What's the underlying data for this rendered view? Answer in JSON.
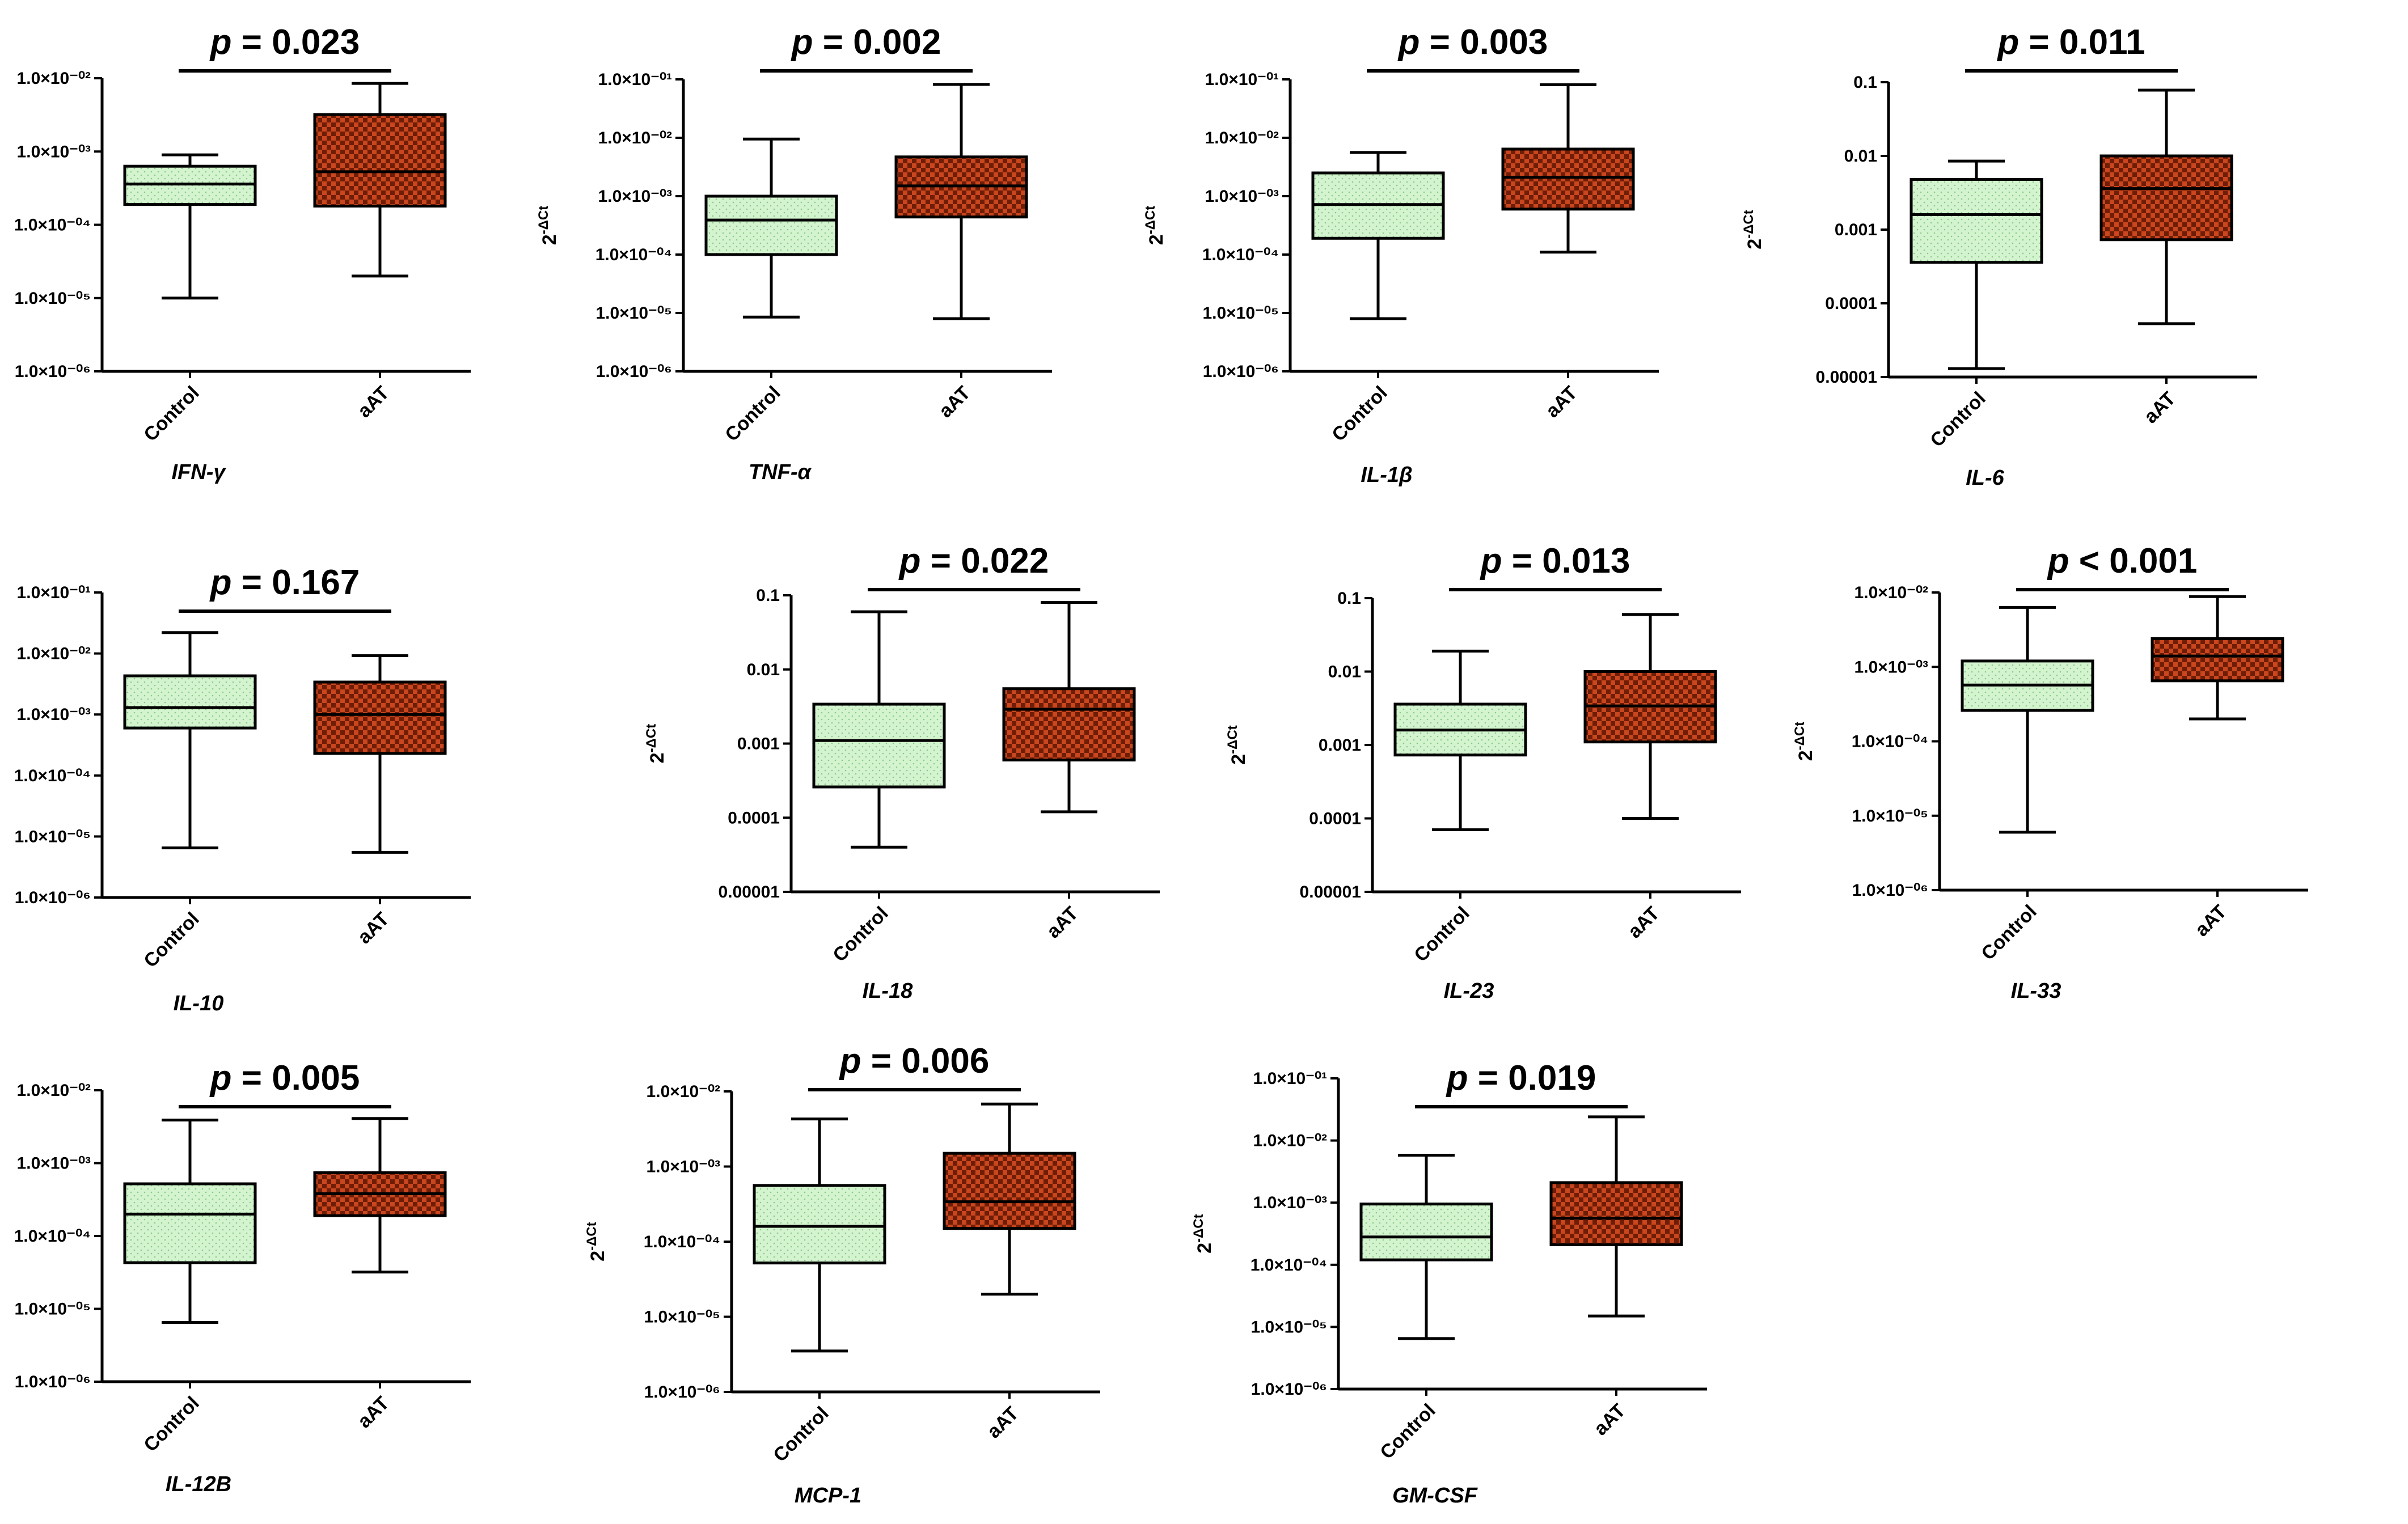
{
  "figure": {
    "ylabel": "2",
    "ylabel_sup": "-ΔCt",
    "colors": {
      "control": "#d4f4cf",
      "aAT": "#c9461e",
      "aAT_dark": "#6e1d06"
    }
  },
  "chart_data": [
    {
      "type": "boxplot",
      "title": "IFN-γ",
      "p_label": "p",
      "p_value": "= 0.023",
      "categories": [
        "Control",
        "aAT"
      ],
      "ylim": [
        1e-06,
        0.01
      ],
      "scale": "log",
      "ticks": [
        "1.0×10⁻⁰²",
        "1.0×10⁻⁰³",
        "1.0×10⁻⁰⁴",
        "1.0×10⁻⁰⁵",
        "1.0×10⁻⁰⁶"
      ],
      "series": [
        {
          "name": "Control",
          "min": 1e-05,
          "q1": 0.00019,
          "median": 0.00036,
          "q3": 0.00063,
          "max": 0.0009
        },
        {
          "name": "aAT",
          "min": 2e-05,
          "q1": 0.00018,
          "median": 0.00053,
          "q3": 0.0032,
          "max": 0.0085
        }
      ]
    },
    {
      "type": "boxplot",
      "title": "TNF-α",
      "p_label": "p",
      "p_value": "= 0.002",
      "categories": [
        "Control",
        "aAT"
      ],
      "ylim": [
        1e-06,
        0.1
      ],
      "scale": "log",
      "ticks": [
        "1.0×10⁻⁰¹",
        "1.0×10⁻⁰²",
        "1.0×10⁻⁰³",
        "1.0×10⁻⁰⁴",
        "1.0×10⁻⁰⁵",
        "1.0×10⁻⁰⁶"
      ],
      "series": [
        {
          "name": "Control",
          "min": 8.5e-06,
          "q1": 0.0001,
          "median": 0.00039,
          "q3": 0.001,
          "max": 0.0095
        },
        {
          "name": "aAT",
          "min": 8e-06,
          "q1": 0.00044,
          "median": 0.0015,
          "q3": 0.0047,
          "max": 0.082
        }
      ]
    },
    {
      "type": "boxplot",
      "title": "IL-1β",
      "p_label": "p",
      "p_value": "= 0.003",
      "categories": [
        "Control",
        "aAT"
      ],
      "ylim": [
        1e-06,
        0.1
      ],
      "scale": "log",
      "ticks": [
        "1.0×10⁻⁰¹",
        "1.0×10⁻⁰²",
        "1.0×10⁻⁰³",
        "1.0×10⁻⁰⁴",
        "1.0×10⁻⁰⁵",
        "1.0×10⁻⁰⁶"
      ],
      "series": [
        {
          "name": "Control",
          "min": 8e-06,
          "q1": 0.00019,
          "median": 0.00072,
          "q3": 0.0025,
          "max": 0.0056
        },
        {
          "name": "aAT",
          "min": 0.00011,
          "q1": 0.0006,
          "median": 0.0021,
          "q3": 0.0064,
          "max": 0.081
        }
      ]
    },
    {
      "type": "boxplot",
      "title": "IL-6",
      "p_label": "p",
      "p_value": "= 0.011",
      "categories": [
        "Control",
        "aAT"
      ],
      "ylim": [
        1e-05,
        0.1
      ],
      "scale": "log",
      "ticks": [
        "0.1",
        "0.01",
        "0.001",
        "0.0001",
        "0.00001"
      ],
      "series": [
        {
          "name": "Control",
          "min": 1.3e-05,
          "q1": 0.00036,
          "median": 0.0016,
          "q3": 0.0048,
          "max": 0.0085
        },
        {
          "name": "aAT",
          "min": 5.3e-05,
          "q1": 0.00073,
          "median": 0.0036,
          "q3": 0.01,
          "max": 0.078
        }
      ]
    },
    {
      "type": "boxplot",
      "title": "IL-10",
      "p_label": "p",
      "p_value": "= 0.167",
      "categories": [
        "Control",
        "aAT"
      ],
      "ylim": [
        1e-06,
        0.1
      ],
      "scale": "log",
      "ticks": [
        "1.0×10⁻⁰¹",
        "1.0×10⁻⁰²",
        "1.0×10⁻⁰³",
        "1.0×10⁻⁰⁴",
        "1.0×10⁻⁰⁵",
        "1.0×10⁻⁰⁶"
      ],
      "series": [
        {
          "name": "Control",
          "min": 6.5e-06,
          "q1": 0.0006,
          "median": 0.0013,
          "q3": 0.0043,
          "max": 0.022
        },
        {
          "name": "aAT",
          "min": 5.5e-06,
          "q1": 0.00023,
          "median": 0.001,
          "q3": 0.0034,
          "max": 0.0092
        }
      ]
    },
    {
      "type": "boxplot",
      "title": "IL-18",
      "p_label": "p",
      "p_value": "= 0.022",
      "categories": [
        "Control",
        "aAT"
      ],
      "ylim": [
        1e-05,
        0.1
      ],
      "scale": "log",
      "ticks": [
        "0.1",
        "0.01",
        "0.001",
        "0.0001",
        "0.00001"
      ],
      "series": [
        {
          "name": "Control",
          "min": 4e-05,
          "q1": 0.00026,
          "median": 0.0011,
          "q3": 0.0034,
          "max": 0.06
        },
        {
          "name": "aAT",
          "min": 0.00012,
          "q1": 0.0006,
          "median": 0.0029,
          "q3": 0.0055,
          "max": 0.08
        }
      ]
    },
    {
      "type": "boxplot",
      "title": "IL-23",
      "p_label": "p",
      "p_value": "= 0.013",
      "categories": [
        "Control",
        "aAT"
      ],
      "ylim": [
        1e-05,
        0.1
      ],
      "scale": "log",
      "ticks": [
        "0.1",
        "0.01",
        "0.001",
        "0.0001",
        "0.00001"
      ],
      "series": [
        {
          "name": "Control",
          "min": 7e-05,
          "q1": 0.00073,
          "median": 0.0016,
          "q3": 0.0036,
          "max": 0.019
        },
        {
          "name": "aAT",
          "min": 0.0001,
          "q1": 0.0011,
          "median": 0.0034,
          "q3": 0.01,
          "max": 0.06
        }
      ]
    },
    {
      "type": "boxplot",
      "title": "IL-33",
      "p_label": "p",
      "p_value": "< 0.001",
      "categories": [
        "Control",
        "aAT"
      ],
      "ylim": [
        1e-06,
        0.01
      ],
      "scale": "log",
      "ticks": [
        "1.0×10⁻⁰²",
        "1.0×10⁻⁰³",
        "1.0×10⁻⁰⁴",
        "1.0×10⁻⁰⁵",
        "1.0×10⁻⁰⁶"
      ],
      "series": [
        {
          "name": "Control",
          "min": 6e-06,
          "q1": 0.00026,
          "median": 0.00057,
          "q3": 0.0012,
          "max": 0.0063
        },
        {
          "name": "aAT",
          "min": 0.0002,
          "q1": 0.00065,
          "median": 0.0014,
          "q3": 0.0024,
          "max": 0.0088
        }
      ]
    },
    {
      "type": "boxplot",
      "title": "IL-12B",
      "p_label": "p",
      "p_value": "= 0.005",
      "categories": [
        "Control",
        "aAT"
      ],
      "ylim": [
        1e-06,
        0.01
      ],
      "scale": "log",
      "ticks": [
        "1.0×10⁻⁰²",
        "1.0×10⁻⁰³",
        "1.0×10⁻⁰⁴",
        "1.0×10⁻⁰⁵",
        "1.0×10⁻⁰⁶"
      ],
      "series": [
        {
          "name": "Control",
          "min": 6.5e-06,
          "q1": 4.3e-05,
          "median": 0.0002,
          "q3": 0.00052,
          "max": 0.0039
        },
        {
          "name": "aAT",
          "min": 3.2e-05,
          "q1": 0.00019,
          "median": 0.00038,
          "q3": 0.00074,
          "max": 0.0041
        }
      ]
    },
    {
      "type": "boxplot",
      "title": "MCP-1",
      "p_label": "p",
      "p_value": "= 0.006",
      "categories": [
        "Control",
        "aAT"
      ],
      "ylim": [
        1e-06,
        0.01
      ],
      "scale": "log",
      "ticks": [
        "1.0×10⁻⁰²",
        "1.0×10⁻⁰³",
        "1.0×10⁻⁰⁴",
        "1.0×10⁻⁰⁵",
        "1.0×10⁻⁰⁶"
      ],
      "series": [
        {
          "name": "Control",
          "min": 3.5e-06,
          "q1": 5.2e-05,
          "median": 0.00016,
          "q3": 0.00056,
          "max": 0.0043
        },
        {
          "name": "aAT",
          "min": 2e-05,
          "q1": 0.00015,
          "median": 0.00034,
          "q3": 0.0015,
          "max": 0.0068
        }
      ]
    },
    {
      "type": "boxplot",
      "title": "GM-CSF",
      "p_label": "p",
      "p_value": "= 0.019",
      "categories": [
        "Control",
        "aAT"
      ],
      "ylim": [
        1e-06,
        0.1
      ],
      "scale": "log",
      "ticks": [
        "1.0×10⁻⁰¹",
        "1.0×10⁻⁰²",
        "1.0×10⁻⁰³",
        "1.0×10⁻⁰⁴",
        "1.0×10⁻⁰⁵",
        "1.0×10⁻⁰⁶"
      ],
      "series": [
        {
          "name": "Control",
          "min": 6.5e-06,
          "q1": 0.00012,
          "median": 0.00028,
          "q3": 0.00095,
          "max": 0.0058
        },
        {
          "name": "aAT",
          "min": 1.5e-05,
          "q1": 0.00021,
          "median": 0.00056,
          "q3": 0.0021,
          "max": 0.024
        }
      ]
    }
  ]
}
